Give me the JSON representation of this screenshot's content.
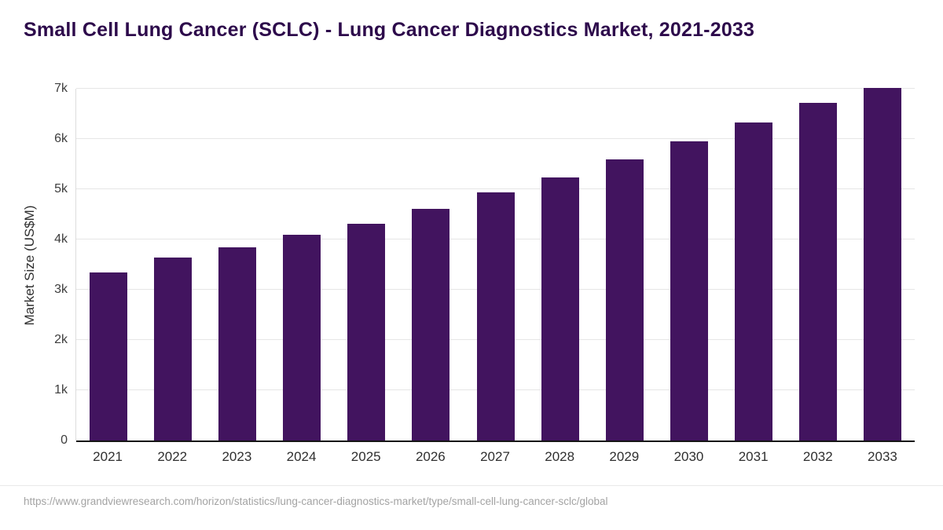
{
  "title": "Small Cell Lung Cancer (SCLC) - Lung Cancer Diagnostics Market, 2021-2033",
  "footer": {
    "source_url": "https://www.grandviewresearch.com/horizon/statistics/lung-cancer-diagnostics-market/type/small-cell-lung-cancer-sclc/global"
  },
  "colors": {
    "bar": "#42145f",
    "title_text": "#2d0a4b",
    "grid": "#e6e6e6",
    "baseline": "#151515",
    "axis_text": "#2f2f2f",
    "footer_text": "#a3a3a3"
  },
  "chart_data": {
    "type": "bar",
    "title": "Small Cell Lung Cancer (SCLC) - Lung Cancer Diagnostics Market, 2021-2033",
    "categories": [
      "2021",
      "2022",
      "2023",
      "2024",
      "2025",
      "2026",
      "2027",
      "2028",
      "2029",
      "2030",
      "2031",
      "2032",
      "2033"
    ],
    "values": [
      3350,
      3640,
      3840,
      4090,
      4310,
      4610,
      4940,
      5230,
      5590,
      5950,
      6330,
      6720,
      7020
    ],
    "xlabel": "",
    "ylabel": "Market Size (US$M)",
    "ylim": [
      0,
      7000
    ],
    "yticks": [
      {
        "value": 0,
        "label": "0"
      },
      {
        "value": 1000,
        "label": "1k"
      },
      {
        "value": 2000,
        "label": "2k"
      },
      {
        "value": 3000,
        "label": "3k"
      },
      {
        "value": 4000,
        "label": "4k"
      },
      {
        "value": 5000,
        "label": "5k"
      },
      {
        "value": 6000,
        "label": "6k"
      },
      {
        "value": 7000,
        "label": "7k"
      }
    ],
    "grid": true,
    "legend": false,
    "units": "US$M"
  }
}
